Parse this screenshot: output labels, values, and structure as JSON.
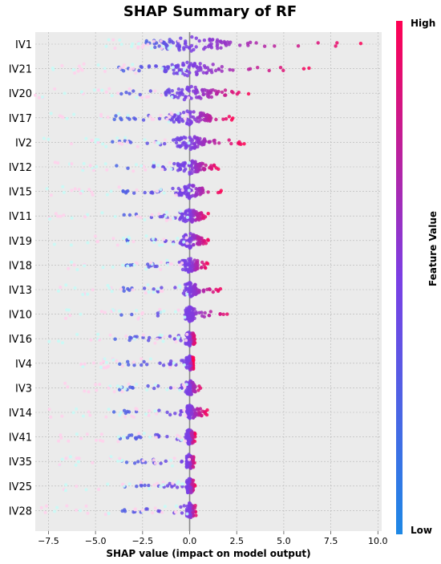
{
  "chart_data": {
    "type": "scatter",
    "title": "SHAP Summary of RF",
    "xlabel": "SHAP value (impact on model output)",
    "ylabel": "",
    "xlim": [
      -8.2,
      10.2
    ],
    "xticks": [
      -7.5,
      -5.0,
      -2.5,
      0.0,
      2.5,
      5.0,
      7.5,
      10.0
    ],
    "xtick_labels": [
      "−7.5",
      "−5.0",
      "−2.5",
      "0.0",
      "2.5",
      "5.0",
      "7.5",
      "10.0"
    ],
    "grid": true,
    "colorbar": {
      "label": "Feature Value",
      "high_label": "High",
      "low_label": "Low",
      "colors": [
        "#1e88e5",
        "#7b3fe4",
        "#ff0052"
      ]
    },
    "features": [
      {
        "name": "IV1",
        "spread": [
          -4.6,
          9.4
        ],
        "core": 1.8
      },
      {
        "name": "IV21",
        "spread": [
          -7.3,
          6.6
        ],
        "core": 1.4
      },
      {
        "name": "IV20",
        "spread": [
          -8.2,
          3.2
        ],
        "core": 1.2
      },
      {
        "name": "IV17",
        "spread": [
          -7.4,
          2.3
        ],
        "core": 0.9
      },
      {
        "name": "IV2",
        "spread": [
          -8.0,
          2.9
        ],
        "core": 0.7
      },
      {
        "name": "IV12",
        "spread": [
          -7.3,
          1.6
        ],
        "core": 0.6
      },
      {
        "name": "IV15",
        "spread": [
          -7.6,
          1.7
        ],
        "core": 0.6
      },
      {
        "name": "IV11",
        "spread": [
          -7.6,
          1.0
        ],
        "core": 0.5
      },
      {
        "name": "IV19",
        "spread": [
          -7.3,
          1.1
        ],
        "core": 0.5
      },
      {
        "name": "IV18",
        "spread": [
          -6.5,
          1.0
        ],
        "core": 0.4
      },
      {
        "name": "IV13",
        "spread": [
          -7.4,
          1.8
        ],
        "core": 0.3
      },
      {
        "name": "IV10",
        "spread": [
          -7.3,
          2.4
        ],
        "core": 0.2
      },
      {
        "name": "IV16",
        "spread": [
          -7.6,
          0.3
        ],
        "core": 0.2
      },
      {
        "name": "IV4",
        "spread": [
          -7.0,
          0.2
        ],
        "core": 0.2
      },
      {
        "name": "IV3",
        "spread": [
          -6.8,
          0.7
        ],
        "core": 0.2
      },
      {
        "name": "IV14",
        "spread": [
          -7.5,
          1.0
        ],
        "core": 0.15
      },
      {
        "name": "IV41",
        "spread": [
          -7.0,
          0.3
        ],
        "core": 0.15
      },
      {
        "name": "IV35",
        "spread": [
          -7.0,
          0.3
        ],
        "core": 0.15
      },
      {
        "name": "IV25",
        "spread": [
          -7.0,
          0.3
        ],
        "core": 0.15
      },
      {
        "name": "IV28",
        "spread": [
          -8.0,
          0.4
        ],
        "core": 0.15
      }
    ]
  }
}
